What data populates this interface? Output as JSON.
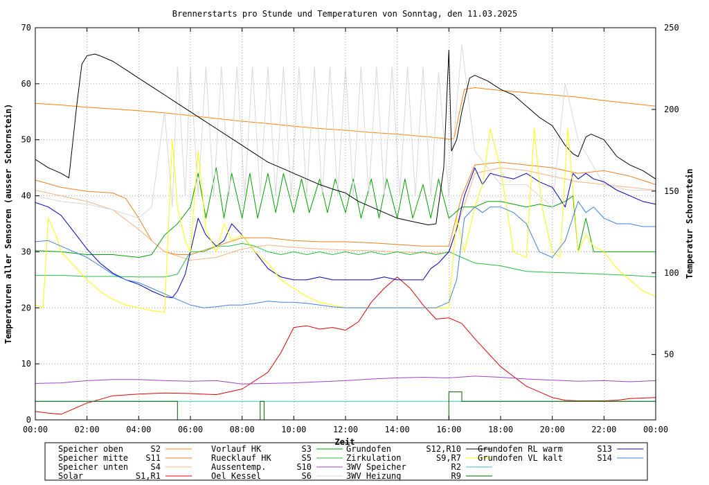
{
  "chart_data": {
    "type": "line",
    "title": "Brennerstarts pro Stunde und Temperaturen von Sonntag, den 11.03.2025",
    "xlabel": "Zeit",
    "ylabel": "Temperaturen aller Sensoren (ausser Schornstein)",
    "y2label": "Temperatur Schornstein",
    "y2label_color": "#ff44ff",
    "x_ticks": [
      "00:00",
      "02:00",
      "04:00",
      "06:00",
      "08:00",
      "10:00",
      "12:00",
      "14:00",
      "16:00",
      "18:00",
      "20:00",
      "22:00",
      "00:00"
    ],
    "xlim": [
      0,
      24
    ],
    "ylim": [
      0,
      70
    ],
    "y_ticks": [
      "0",
      "10",
      "20",
      "30",
      "40",
      "50",
      "60",
      "70"
    ],
    "y2lim": [
      10,
      250
    ],
    "y2_ticks": [
      "50",
      "100",
      "150",
      "200",
      "250"
    ],
    "grid": true,
    "legend_position": "bottom",
    "legend": [
      {
        "label": "Speicher oben",
        "sensor": "S2",
        "color": "#ff8000"
      },
      {
        "label": "Vorlauf HK",
        "sensor": "S3",
        "color": "#00a000"
      },
      {
        "label": "Grundofen",
        "sensor": "S12,R10",
        "color": "#000000"
      },
      {
        "label": "Grundofen RL warm",
        "sensor": "S13",
        "color": "#0000c0"
      },
      {
        "label": "Speicher mitte",
        "sensor": "S11",
        "color": "#f08020"
      },
      {
        "label": "Ruecklauf HK",
        "sensor": "S5",
        "color": "#20c040"
      },
      {
        "label": "Zirkulation",
        "sensor": "S9,R7",
        "color": "#ffff00"
      },
      {
        "label": "Grundofen VL kalt",
        "sensor": "S14",
        "color": "#4080e0"
      },
      {
        "label": "Speicher unten",
        "sensor": "S4",
        "color": "#ffb080"
      },
      {
        "label": "Aussentemp.",
        "sensor": "S10",
        "color": "#a040c0"
      },
      {
        "label": "3WV Speicher",
        "sensor": "R2",
        "color": "#40c0c0"
      },
      {
        "label": "",
        "sensor": "",
        "color": ""
      },
      {
        "label": "Solar",
        "sensor": "S1,R1",
        "color": "#e00000"
      },
      {
        "label": "Oel Kessel",
        "sensor": "S6",
        "color": "#d8d8d8"
      },
      {
        "label": "3WV Heizung",
        "sensor": "R9",
        "color": "#006000"
      },
      {
        "label": "",
        "sensor": "",
        "color": ""
      }
    ],
    "series": [
      {
        "name": "Speicher oben",
        "color": "#ff8000",
        "x": [
          0,
          1,
          2,
          3,
          4,
          5,
          6,
          7,
          8,
          9,
          10,
          11,
          12,
          13,
          14,
          15,
          15.9,
          16,
          16.2,
          16.6,
          17,
          18,
          19,
          20,
          21,
          22,
          23,
          24
        ],
        "y": [
          56.5,
          56.2,
          55.8,
          55.5,
          55.2,
          54.8,
          54.3,
          53.8,
          53.3,
          52.9,
          52.4,
          52,
          51.7,
          51.3,
          51,
          50.6,
          50.2,
          50,
          50.3,
          59,
          59.3,
          58.8,
          58.4,
          58,
          57.6,
          57,
          56.5,
          56
        ]
      },
      {
        "name": "Speicher mitte",
        "color": "#f08020",
        "x": [
          0,
          1,
          2,
          3,
          3.5,
          4,
          4.5,
          5,
          5.5,
          6,
          7,
          8,
          9,
          10,
          11,
          12,
          13,
          14,
          15,
          16,
          16.5,
          17,
          18,
          19,
          20,
          21,
          22,
          23,
          24
        ],
        "y": [
          42.8,
          41.5,
          40.8,
          40.5,
          39.5,
          36,
          32,
          30,
          29.5,
          29.5,
          31,
          32.5,
          32.5,
          32,
          31.8,
          31.8,
          31.6,
          31.3,
          31,
          31,
          40,
          45.5,
          46,
          45.5,
          45,
          44,
          44.5,
          43.5,
          42
        ]
      },
      {
        "name": "Speicher unten",
        "color": "#ffb080",
        "x": [
          0,
          1,
          2,
          3,
          4,
          5,
          6,
          7,
          8,
          9,
          10,
          11,
          12,
          13,
          14,
          15,
          16,
          16.5,
          17,
          18,
          19,
          20,
          21,
          22,
          23,
          24
        ],
        "y": [
          41,
          40,
          39,
          37.5,
          34,
          30,
          28.5,
          29,
          30.5,
          31.2,
          30.8,
          30.5,
          30.3,
          30.2,
          30,
          29.8,
          29.8,
          37,
          44,
          45,
          44.5,
          43.5,
          42.5,
          42,
          41.5,
          41
        ]
      },
      {
        "name": "Solar",
        "color": "#e00000",
        "x": [
          0,
          0.5,
          1,
          2,
          3,
          4,
          5,
          6,
          7,
          8,
          9,
          9.5,
          10,
          10.5,
          11,
          11.5,
          12,
          12.5,
          13,
          13.5,
          14,
          14.5,
          15,
          15.5,
          16,
          16.5,
          17,
          18,
          19,
          20,
          20.5,
          21,
          22,
          22.5,
          23,
          24
        ],
        "y": [
          1.5,
          1.2,
          1,
          3,
          4.3,
          4.6,
          4.8,
          4.7,
          4.5,
          5.5,
          8.5,
          12,
          16.5,
          16.8,
          16.2,
          16.5,
          16,
          17.5,
          21,
          23.5,
          25.5,
          23.5,
          20.5,
          18,
          18.2,
          17.2,
          14.5,
          9.5,
          6,
          4,
          3.5,
          3.4,
          3.4,
          3.5,
          3.8,
          4
        ]
      },
      {
        "name": "Aussentemp.",
        "color": "#a040c0",
        "x": [
          0,
          1,
          2,
          3,
          4,
          5,
          6,
          7,
          8,
          9,
          10,
          11,
          12,
          13,
          14,
          15,
          16,
          17,
          18,
          19,
          20,
          21,
          22,
          23,
          24
        ],
        "y": [
          6.5,
          6.6,
          7,
          7.2,
          7.2,
          7,
          6.9,
          7,
          6.4,
          6.5,
          6.6,
          6.8,
          7,
          7.3,
          7.5,
          7.6,
          7.5,
          7.8,
          7.6,
          7.3,
          7.1,
          6.9,
          7,
          6.8,
          7
        ]
      },
      {
        "name": "Vorlauf HK",
        "color": "#00a000",
        "x": [
          0,
          1,
          2,
          3,
          4,
          4.5,
          5,
          5.5,
          6,
          6.3,
          6.6,
          7,
          7.3,
          7.6,
          8,
          8.3,
          8.6,
          9,
          9.3,
          9.6,
          10,
          10.3,
          10.6,
          11,
          11.3,
          11.6,
          12,
          12.3,
          12.6,
          13,
          13.3,
          13.6,
          14,
          14.3,
          14.6,
          15,
          15.3,
          15.6,
          16,
          16.5,
          17,
          17.5,
          18,
          18.5,
          19,
          19.5,
          20,
          20.5,
          20.8,
          21,
          21.3,
          21.6,
          22,
          23,
          24
        ],
        "y": [
          30.2,
          30,
          29.5,
          29.5,
          29,
          29.5,
          33,
          35,
          38,
          44,
          36,
          45,
          36,
          44,
          36,
          44,
          36,
          44,
          37,
          44,
          37,
          43,
          37,
          43,
          37,
          43,
          37,
          43,
          36,
          43,
          36,
          43,
          36,
          43,
          36,
          42,
          36,
          43,
          36,
          38,
          38,
          39,
          39,
          38.5,
          38,
          38.5,
          38,
          39,
          40,
          30,
          36,
          30,
          30,
          30,
          30
        ]
      },
      {
        "name": "Ruecklauf HK",
        "color": "#20c040",
        "x": [
          0,
          1,
          2,
          3,
          4,
          5,
          5.5,
          6,
          6.5,
          7,
          7.5,
          8,
          8.5,
          9,
          9.5,
          10,
          10.5,
          11,
          11.5,
          12,
          12.5,
          13,
          13.5,
          14,
          14.5,
          15,
          15.5,
          16,
          16.5,
          17,
          18,
          19,
          20,
          21,
          22,
          23,
          24
        ],
        "y": [
          25.8,
          25.8,
          25.6,
          25.6,
          25.5,
          25.5,
          26,
          30,
          30,
          31,
          31,
          31.5,
          31,
          30,
          29.5,
          30,
          29.5,
          30,
          29.5,
          30,
          29.5,
          30,
          29.5,
          30,
          29.5,
          30,
          29.5,
          30,
          29,
          28,
          27.5,
          26.5,
          26.3,
          26.2,
          26,
          25.8,
          25.5
        ]
      },
      {
        "name": "Oel Kessel",
        "color": "#d8d8d8",
        "x": [
          0,
          1,
          2,
          3,
          4,
          4.5,
          5,
          5.3,
          5.5,
          5.8,
          6,
          6.3,
          6.6,
          6.9,
          7.2,
          7.5,
          7.8,
          8.1,
          8.4,
          8.7,
          9,
          9.3,
          9.6,
          9.9,
          10.2,
          10.5,
          10.8,
          11.1,
          11.4,
          11.7,
          12,
          12.3,
          12.6,
          12.9,
          13.2,
          13.5,
          13.8,
          14.1,
          14.4,
          14.7,
          15,
          15.3,
          15.6,
          16,
          16.5,
          17,
          18,
          19,
          20,
          20.5,
          21,
          22,
          23,
          24
        ],
        "y": [
          40,
          39,
          38.5,
          37.5,
          36,
          38,
          55,
          38,
          63,
          40,
          63,
          40,
          63,
          40,
          63,
          40,
          63,
          40,
          63,
          40,
          63,
          40,
          63,
          40,
          63,
          40,
          63,
          40,
          63,
          40,
          63,
          40,
          63,
          40,
          63,
          40,
          63,
          40,
          63,
          40,
          63,
          40,
          62,
          40,
          67,
          48,
          42,
          42,
          38,
          60,
          50,
          42,
          41,
          41
        ]
      },
      {
        "name": "Grundofen",
        "color": "#000000",
        "x": [
          0,
          0.5,
          1,
          1.3,
          1.6,
          1.8,
          2,
          2.3,
          2.5,
          3,
          3.5,
          4,
          4.5,
          5,
          5.5,
          6,
          6.5,
          7,
          7.5,
          8,
          8.5,
          9,
          9.5,
          10,
          10.5,
          11,
          11.5,
          12,
          12.5,
          13,
          13.5,
          14,
          14.5,
          15,
          15.2,
          15.5,
          15.8,
          16,
          16.1,
          16.3,
          16.5,
          16.8,
          17,
          17.5,
          18,
          18.5,
          19,
          19.5,
          20,
          20.5,
          20.8,
          21,
          21.3,
          21.5,
          22,
          22.5,
          23,
          23.5,
          24
        ],
        "y": [
          46.5,
          45,
          44,
          43.2,
          56,
          63.5,
          65,
          65.3,
          65,
          64,
          62.5,
          61,
          59.5,
          58,
          56.5,
          55,
          53.5,
          52,
          50.5,
          49,
          47.5,
          46,
          45,
          44,
          43,
          42,
          41.2,
          40.5,
          39,
          38,
          37,
          36,
          35.5,
          35,
          34.8,
          35,
          45,
          66,
          48,
          50,
          55,
          61,
          61.5,
          60.5,
          59,
          58,
          56,
          54,
          52.5,
          49,
          47.5,
          47,
          50.5,
          51,
          50,
          47,
          45.5,
          44.5,
          43
        ]
      },
      {
        "name": "Grundofen RL warm",
        "color": "#0000c0",
        "x": [
          0,
          0.5,
          1,
          1.5,
          2,
          2.5,
          3,
          3.5,
          4,
          4.5,
          5,
          5.3,
          5.5,
          5.8,
          6,
          6.3,
          6.6,
          7,
          7.3,
          7.6,
          8,
          8.5,
          9,
          9.5,
          10,
          10.5,
          11,
          11.5,
          12,
          12.5,
          13,
          13.5,
          14,
          14.5,
          15,
          15.3,
          15.6,
          16,
          16.3,
          16.6,
          17,
          17.3,
          17.6,
          18,
          18.5,
          19,
          19.5,
          20,
          20.5,
          20.8,
          21,
          21.3,
          21.6,
          22,
          22.5,
          23,
          23.5,
          24
        ],
        "y": [
          38.8,
          38,
          36.5,
          33.5,
          30.5,
          28,
          26.2,
          25,
          24.2,
          23,
          22,
          21.8,
          23,
          26,
          30,
          36,
          33,
          31,
          32,
          35,
          33,
          30,
          27,
          25.5,
          25,
          25,
          25.5,
          25,
          25,
          25,
          25,
          25.5,
          25,
          25,
          25,
          27,
          28,
          30,
          34,
          40,
          45,
          42,
          44,
          43.5,
          43,
          44,
          42.5,
          41.5,
          38,
          44,
          43,
          44,
          43,
          42.5,
          41,
          40,
          39,
          38.5
        ]
      },
      {
        "name": "Zirkulation",
        "color": "#ffff00",
        "x": [
          0,
          0.3,
          0.5,
          0.8,
          1,
          1.5,
          2,
          2.5,
          3,
          3.5,
          4,
          4.5,
          5,
          5.3,
          5.5,
          5.8,
          6,
          6.3,
          6.6,
          7,
          7.3,
          7.6,
          8,
          8.5,
          9,
          9.5,
          10,
          10.5,
          11,
          11.5,
          12,
          12.5,
          13,
          13.5,
          14,
          14.5,
          15,
          15.3,
          15.6,
          16,
          16.3,
          16.6,
          17,
          17.3,
          17.6,
          18,
          18.5,
          19,
          19.3,
          19.6,
          20,
          20.3,
          20.6,
          21,
          21.3,
          21.6,
          22,
          22.5,
          23,
          23.5,
          24
        ],
        "y": [
          20.5,
          20,
          36,
          33,
          30,
          27.5,
          25,
          23,
          21.5,
          20.5,
          20,
          19.5,
          19.2,
          50,
          38,
          32,
          30,
          48,
          34,
          30,
          35,
          32,
          33,
          30,
          28,
          25,
          23.5,
          22,
          21,
          20.5,
          20,
          20,
          20,
          20,
          20,
          20,
          20,
          20,
          20,
          20,
          36,
          30,
          38,
          42,
          52,
          45,
          30,
          29,
          52,
          38,
          30,
          29,
          52,
          30,
          33,
          31,
          30,
          27,
          25,
          23,
          22
        ]
      },
      {
        "name": "Grundofen VL kalt",
        "color": "#4080e0",
        "x": [
          0,
          0.5,
          1,
          1.5,
          2,
          2.5,
          3,
          3.5,
          4,
          4.5,
          5,
          5.5,
          6,
          6.5,
          7,
          7.5,
          8,
          8.5,
          9,
          9.5,
          10,
          10.5,
          11,
          11.5,
          12,
          12.5,
          13,
          13.5,
          14,
          14.5,
          15,
          15.5,
          16,
          16.3,
          16.6,
          17,
          17.3,
          17.6,
          18,
          18.5,
          19,
          19.5,
          20,
          20.5,
          21,
          21.3,
          21.6,
          22,
          22.5,
          23,
          23.5,
          24
        ],
        "y": [
          31.8,
          32,
          31,
          30,
          29,
          27.5,
          26,
          25,
          24.5,
          23.5,
          22.5,
          21.5,
          20.5,
          20,
          20.2,
          20.5,
          20.5,
          20.8,
          21.2,
          21,
          21,
          20.8,
          20.5,
          20.2,
          20,
          20,
          20,
          20,
          20,
          20,
          20,
          20,
          21,
          25,
          36,
          38,
          37,
          38,
          38,
          37,
          35,
          30,
          29,
          32,
          39,
          37,
          38,
          36,
          35,
          35,
          34.5,
          34.5
        ]
      },
      {
        "name": "3WV Speicher",
        "color": "#40c0c0",
        "x": [
          0,
          24
        ],
        "y": [
          3.3,
          3.3
        ]
      },
      {
        "name": "3WV Heizung",
        "color": "#006000",
        "x": [
          0,
          5.5,
          5.5,
          8.7,
          8.7,
          8.85,
          8.85,
          16,
          16,
          16.5,
          16.5,
          24
        ],
        "y": [
          3.3,
          3.3,
          0,
          0,
          3.3,
          3.3,
          0,
          0,
          5,
          5,
          3.3,
          3.3
        ]
      }
    ]
  }
}
